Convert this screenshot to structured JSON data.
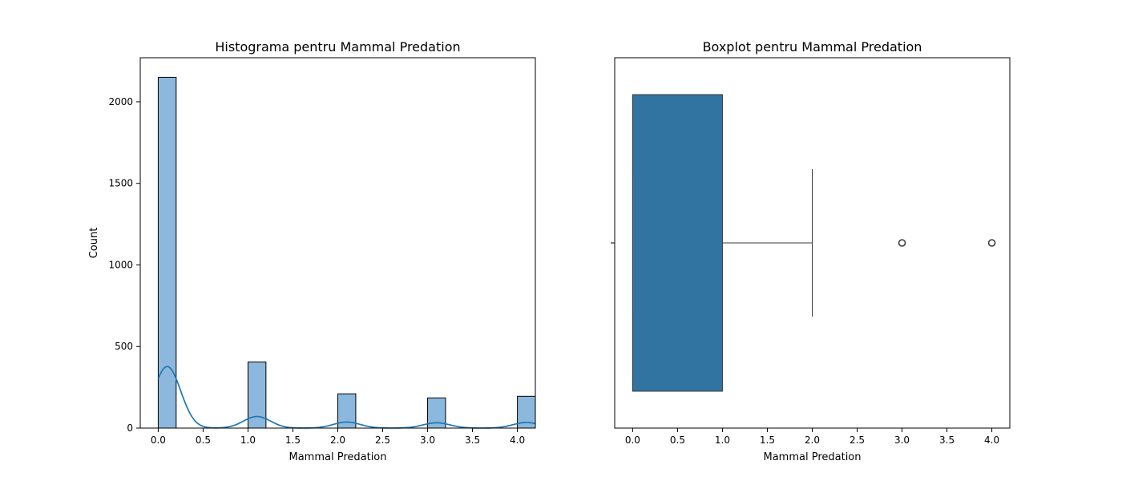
{
  "colors": {
    "hist_fill": "#8bb8dc",
    "hist_edge": "#000000",
    "kde_line": "#1f77b4",
    "box_fill": "#3274a1",
    "box_edge": "#3a3a3a"
  },
  "chart_data": [
    {
      "type": "histogram",
      "title": "Histograma pentru Mammal Predation",
      "xlabel": "Mammal Predation",
      "ylabel": "Count",
      "xlim": [
        -0.2,
        4.2
      ],
      "ylim": [
        0,
        2270
      ],
      "xticks": [
        0.0,
        0.5,
        1.0,
        1.5,
        2.0,
        2.5,
        3.0,
        3.5,
        4.0
      ],
      "xtick_labels": [
        "0.0",
        "0.5",
        "1.0",
        "1.5",
        "2.0",
        "2.5",
        "3.0",
        "3.5",
        "4.0"
      ],
      "yticks": [
        0,
        500,
        1000,
        1500,
        2000
      ],
      "ytick_labels": [
        "0",
        "500",
        "1000",
        "1500",
        "2000"
      ],
      "bin_width": 0.2,
      "bars": [
        {
          "x": 0.0,
          "count": 2150
        },
        {
          "x": 1.0,
          "count": 405
        },
        {
          "x": 2.0,
          "count": 210
        },
        {
          "x": 3.0,
          "count": 185
        },
        {
          "x": 4.0,
          "count": 195
        }
      ],
      "kde_bandwidth": 0.15,
      "grid": false
    },
    {
      "type": "boxplot",
      "title": "Boxplot pentru Mammal Predation",
      "xlabel": "Mammal Predation",
      "xlim": [
        -0.2,
        4.2
      ],
      "xticks": [
        0.0,
        0.5,
        1.0,
        1.5,
        2.0,
        2.5,
        3.0,
        3.5,
        4.0
      ],
      "xtick_labels": [
        "0.0",
        "0.5",
        "1.0",
        "1.5",
        "2.0",
        "2.5",
        "3.0",
        "3.5",
        "4.0"
      ],
      "min": 0.0,
      "q1": 0.0,
      "median": 0.0,
      "q3": 1.0,
      "whisker_high": 2.0,
      "outliers": [
        3.0,
        4.0
      ],
      "grid": false
    }
  ]
}
